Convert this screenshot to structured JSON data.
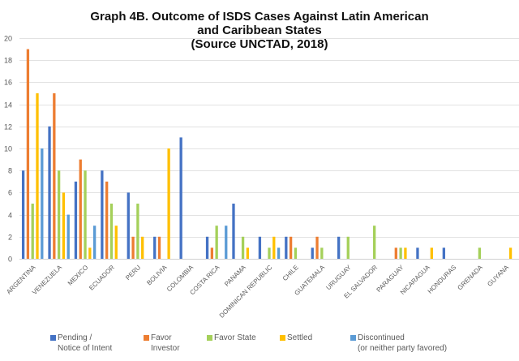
{
  "chart_data": {
    "type": "bar",
    "title": "Graph 4B. Outcome of ISDS Cases Against Latin American and Caribbean States (Source UNCTAD, 2018)",
    "title_lines": [
      "Graph 4B. Outcome of ISDS Cases Against Latin American",
      "and Caribbean States",
      "(Source UNCTAD,  2018)"
    ],
    "xlabel": "",
    "ylabel": "",
    "ylim": [
      0,
      20
    ],
    "yticks": [
      0,
      2,
      4,
      6,
      8,
      10,
      12,
      14,
      16,
      18,
      20
    ],
    "grid": true,
    "legend_position": "bottom",
    "categories": [
      "ARGENTINA",
      "VENEZUELA",
      "MEXICO",
      "ECUADOR",
      "PERU",
      "BOLIVIA",
      "COLOMBIA",
      "COSTA RICA",
      "PANAMA",
      "DOMINICAN REPUBLIC",
      "CHILE",
      "GUATEMALA",
      "URUGUAY",
      "EL SALVADOR",
      "PARAGUAY",
      "NICARAGUA",
      "HONDURAS",
      "GRENADA",
      "GUYANA"
    ],
    "series": [
      {
        "name": "Pending / Notice of Intent",
        "legend_lines": [
          "Pending /",
          "Notice of Intent"
        ],
        "color": "#4472C4",
        "values": [
          8,
          12,
          7,
          8,
          6,
          2,
          11,
          2,
          5,
          2,
          2,
          1,
          2,
          0,
          0,
          1,
          1,
          0,
          0
        ]
      },
      {
        "name": "Favor Investor",
        "legend_lines": [
          "Favor",
          "Investor"
        ],
        "color": "#ED7D31",
        "values": [
          19,
          15,
          9,
          7,
          2,
          2,
          0,
          1,
          0,
          0,
          2,
          2,
          0,
          0,
          1,
          0,
          0,
          0,
          0
        ]
      },
      {
        "name": "Favor State",
        "legend_lines": [
          "Favor State"
        ],
        "color": "#A5D05A",
        "values": [
          5,
          8,
          8,
          5,
          5,
          0,
          0,
          3,
          2,
          1,
          1,
          1,
          2,
          3,
          1,
          0,
          0,
          1,
          0
        ]
      },
      {
        "name": "Settled",
        "legend_lines": [
          "Settled"
        ],
        "color": "#FFC000",
        "values": [
          15,
          6,
          1,
          3,
          2,
          10,
          0,
          0,
          1,
          2,
          0,
          0,
          0,
          0,
          1,
          1,
          0,
          0,
          1
        ]
      },
      {
        "name": "Discontinued (or neither party favored)",
        "legend_lines": [
          "Discontinued",
          "(or neither party favored)"
        ],
        "color": "#5B9BD5",
        "values": [
          10,
          4,
          3,
          0,
          0,
          0,
          0,
          3,
          0,
          1,
          0,
          0,
          0,
          0,
          0,
          0,
          0,
          0,
          0
        ]
      }
    ]
  }
}
